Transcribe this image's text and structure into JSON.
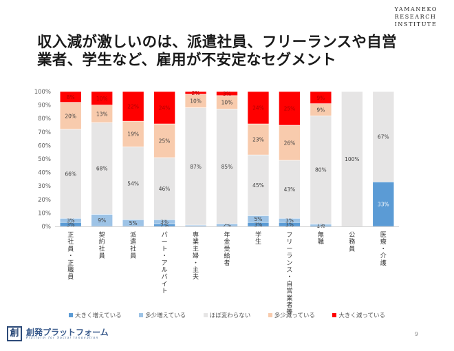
{
  "header": {
    "title_lines": [
      "収入減が激しいのは、派遣社員、フリーランスや自営",
      "業者、学生など、雇用が不安定なセグメント"
    ],
    "institute_lines": [
      "YAMANEKO",
      "RESEARCH",
      "INSTITUTE"
    ]
  },
  "footer": {
    "logo_mark": "創",
    "logo_text": "創発プラットフォーム",
    "logo_sub": "Platform for Social Innovation",
    "page_number": "9"
  },
  "colors": {
    "large_increase": "#5b9bd5",
    "small_increase": "#9dc3e6",
    "no_change": "#e6e5e5",
    "small_decrease": "#f8cbad",
    "large_decrease": "#ff0000"
  },
  "chart_data": {
    "type": "bar",
    "stacked": true,
    "percent": true,
    "title": "",
    "xlabel": "",
    "ylabel": "",
    "ylim": [
      0,
      100
    ],
    "yticks": [
      "0%",
      "10%",
      "20%",
      "30%",
      "40%",
      "50%",
      "60%",
      "70%",
      "80%",
      "90%",
      "100%"
    ],
    "categories": [
      "正社員・正職員",
      "契約社員",
      "派遣社員",
      "パート・アルバイト",
      "専業主婦・主夫",
      "年金受給者",
      "学生",
      "フリーランス・自営業者等",
      "無職",
      "公務員",
      "医療・介護"
    ],
    "series": [
      {
        "name": "大きく増えている",
        "color_key": "large_increase",
        "values": [
          3,
          0,
          0,
          2,
          0,
          0,
          3,
          3,
          1,
          0,
          33
        ],
        "labels": [
          "3%",
          "",
          "",
          "2%",
          "",
          "",
          "3%",
          "3%",
          "1%",
          "",
          "33%"
        ]
      },
      {
        "name": "多少増えている",
        "color_key": "small_increase",
        "values": [
          3,
          9,
          5,
          3,
          1,
          2,
          5,
          3,
          1,
          0,
          0
        ],
        "labels": [
          "3%",
          "9%",
          "5%",
          "3%",
          "",
          "2%",
          "5%",
          "3%",
          "1%",
          "",
          ""
        ]
      },
      {
        "name": "ほぼ変わらない",
        "color_key": "no_change",
        "values": [
          66,
          68,
          54,
          46,
          87,
          85,
          45,
          43,
          80,
          100,
          67
        ],
        "labels": [
          "66%",
          "68%",
          "54%",
          "46%",
          "87%",
          "85%",
          "45%",
          "43%",
          "80%",
          "100%",
          "67%"
        ]
      },
      {
        "name": "多少減っている",
        "color_key": "small_decrease",
        "values": [
          20,
          13,
          19,
          25,
          10,
          10,
          23,
          26,
          9,
          0,
          0
        ],
        "labels": [
          "20%",
          "13%",
          "19%",
          "25%",
          "10%",
          "10%",
          "23%",
          "26%",
          "9%",
          "",
          ""
        ]
      },
      {
        "name": "大きく減っている",
        "color_key": "large_decrease",
        "values": [
          8,
          10,
          22,
          24,
          2,
          3,
          24,
          25,
          9,
          0,
          0
        ],
        "labels": [
          "8%",
          "10%",
          "22%",
          "24%",
          "2%",
          "3%",
          "24%",
          "25%",
          "9%",
          "",
          ""
        ]
      }
    ],
    "legend_position": "bottom"
  }
}
